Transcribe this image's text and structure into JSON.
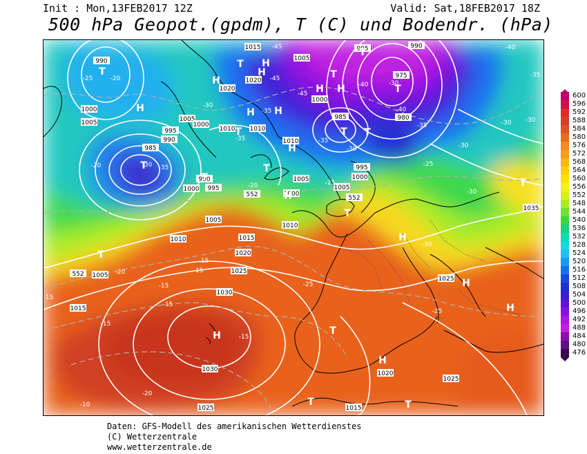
{
  "header": {
    "init": "Init : Mon,13FEB2017 12Z",
    "valid": "Valid: Sat,18FEB2017 18Z",
    "title": "500 hPa Geopot.(gpdm), T (C) und Bodendr. (hPa)"
  },
  "footer": {
    "line1": "Daten: GFS-Modell des amerikanischen Wetterdienstes",
    "line2": "(C) Wetterzentrale",
    "line3": "www.wetterzentrale.de"
  },
  "legend": {
    "values": [
      "600",
      "596",
      "592",
      "588",
      "584",
      "580",
      "576",
      "572",
      "568",
      "564",
      "560",
      "556",
      "552",
      "548",
      "544",
      "540",
      "536",
      "532",
      "528",
      "524",
      "520",
      "516",
      "512",
      "508",
      "504",
      "500",
      "496",
      "492",
      "488",
      "484",
      "480",
      "476"
    ],
    "colors": [
      "#c0006a",
      "#d01050",
      "#e02a2a",
      "#d2402a",
      "#e0502a",
      "#ea6a22",
      "#f08a22",
      "#f5a01a",
      "#f8b818",
      "#fcd010",
      "#fce210",
      "#f5ef20",
      "#d8f020",
      "#a8ec28",
      "#70e030",
      "#3ed440",
      "#20d080",
      "#18d8b0",
      "#18d8e0",
      "#20c0f0",
      "#1e98f5",
      "#1a70f0",
      "#1848e0",
      "#2030d0",
      "#3a20d0",
      "#6010d8",
      "#8a10e0",
      "#a818e0",
      "#c020e0",
      "#8a10a8",
      "#601080",
      "#3a0a4a"
    ]
  },
  "pressure_labels": [
    "990",
    "1015",
    "1005",
    "990",
    "995",
    "975",
    "1000",
    "1005",
    "1020",
    "1010",
    "1000",
    "1005",
    "1000",
    "1020",
    "995",
    "990",
    "985",
    "1010",
    "990",
    "1010",
    "995",
    "1005",
    "1000",
    "985",
    "980",
    "995",
    "1005",
    "1000",
    "1000",
    "1010",
    "1010",
    "1005",
    "1035",
    "552",
    "552",
    "1020",
    "1015",
    "1010",
    "1025",
    "1030",
    "1015",
    "1030",
    "1025",
    "1020",
    "1015",
    "1025",
    "1025",
    "552",
    "1005"
  ],
  "temp_labels": [
    "-25",
    "-20",
    "-45",
    "-45",
    "-45",
    "-40",
    "-30",
    "-35",
    "-30",
    "-35",
    "-40",
    "-35",
    "-30",
    "-30",
    "-35",
    "-35",
    "-30",
    "-25",
    "-30",
    "-30",
    "-20",
    "-20",
    "-25",
    "-30",
    "-20",
    "-15",
    "-15",
    "-15",
    "-15",
    "-15",
    "-15",
    "-20",
    "-10",
    "-15",
    "-25",
    "-25",
    "-30",
    "-35",
    "-40"
  ],
  "highs": [
    "H",
    "H",
    "H",
    "H",
    "H",
    "H",
    "H",
    "H",
    "H",
    "H",
    "H",
    "H",
    "H",
    "H",
    "H"
  ],
  "lows": [
    "T",
    "T",
    "T",
    "T",
    "T",
    "T",
    "T",
    "T",
    "T",
    "T",
    "T",
    "T",
    "T",
    "T",
    "T",
    "T",
    "T"
  ]
}
